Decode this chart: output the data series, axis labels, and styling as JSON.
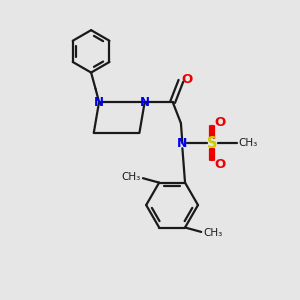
{
  "bg_color": "#e6e6e6",
  "line_color": "#1a1a1a",
  "N_color": "#0000ee",
  "O_color": "#ee0000",
  "S_color": "#cccc00",
  "linewidth": 1.6,
  "figsize": [
    3.0,
    3.0
  ],
  "dpi": 100,
  "xlim": [
    0,
    10
  ],
  "ylim": [
    0,
    10
  ]
}
